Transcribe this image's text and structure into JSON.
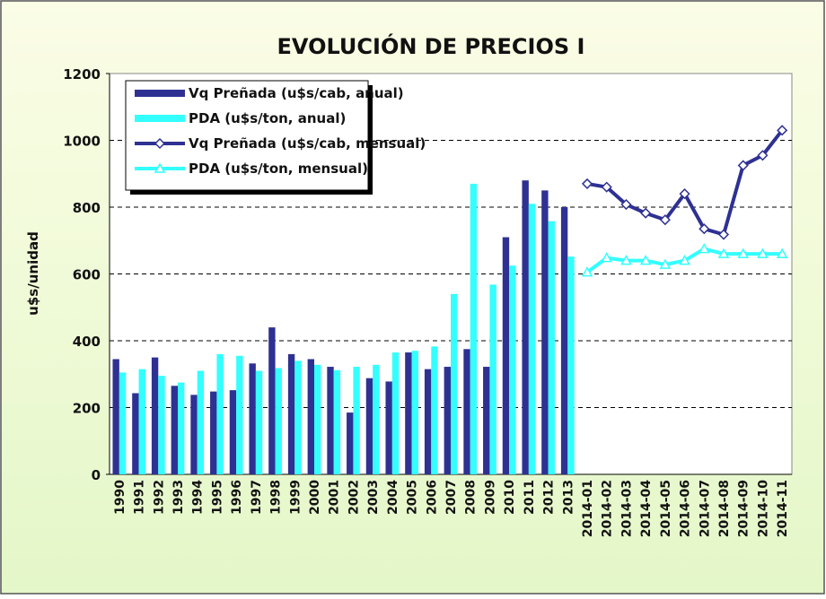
{
  "chart_data": {
    "type": "bar",
    "title": "EVOLUCIÓN DE PRECIOS I",
    "y_label": "u$s/unidad",
    "categories": [
      "1990",
      "1991",
      "1992",
      "1993",
      "1994",
      "1995",
      "1996",
      "1997",
      "1998",
      "1999",
      "2000",
      "2001",
      "2002",
      "2003",
      "2004",
      "2005",
      "2006",
      "2007",
      "2008",
      "2009",
      "2010",
      "2011",
      "2012",
      "2013",
      "2014-01",
      "2014-02",
      "2014-03",
      "2014-04",
      "2014-05",
      "2014-06",
      "2014-07",
      "2014-08",
      "2014-09",
      "2014-10",
      "2014-11"
    ],
    "series": [
      {
        "name": "Vq Preñada (u$s/cab, anual)",
        "type": "bar",
        "color": "#2e3192",
        "values": [
          345,
          243,
          350,
          265,
          238,
          248,
          252,
          332,
          440,
          360,
          345,
          322,
          185,
          288,
          278,
          365,
          315,
          322,
          375,
          322,
          710,
          880,
          850,
          800,
          null,
          null,
          null,
          null,
          null,
          null,
          null,
          null,
          null,
          null,
          null
        ]
      },
      {
        "name": "PDA (u$s/ton, anual)",
        "type": "bar",
        "color": "#33ffff",
        "values": [
          305,
          315,
          295,
          275,
          310,
          360,
          355,
          310,
          318,
          340,
          328,
          312,
          322,
          328,
          365,
          370,
          383,
          540,
          870,
          568,
          625,
          810,
          758,
          652,
          null,
          null,
          null,
          null,
          null,
          null,
          null,
          null,
          null,
          null,
          null
        ]
      },
      {
        "name": "Vq Preñada (u$s/cab, mensual)",
        "type": "line",
        "marker": "diamond",
        "color": "#2e3192",
        "values": [
          null,
          null,
          null,
          null,
          null,
          null,
          null,
          null,
          null,
          null,
          null,
          null,
          null,
          null,
          null,
          null,
          null,
          null,
          null,
          null,
          null,
          null,
          null,
          null,
          870,
          860,
          808,
          782,
          762,
          840,
          735,
          718,
          925,
          955,
          1030
        ]
      },
      {
        "name": "PDA (u$s/ton, mensual)",
        "type": "line",
        "marker": "triangle",
        "color": "#33ffff",
        "values": [
          null,
          null,
          null,
          null,
          null,
          null,
          null,
          null,
          null,
          null,
          null,
          null,
          null,
          null,
          null,
          null,
          null,
          null,
          null,
          null,
          null,
          null,
          null,
          null,
          605,
          648,
          640,
          640,
          628,
          640,
          675,
          660,
          660,
          660,
          660
        ]
      }
    ],
    "ylim": [
      0,
      1200
    ],
    "yticks": [
      0,
      200,
      400,
      600,
      800,
      1000,
      1200
    ],
    "grid": true
  }
}
